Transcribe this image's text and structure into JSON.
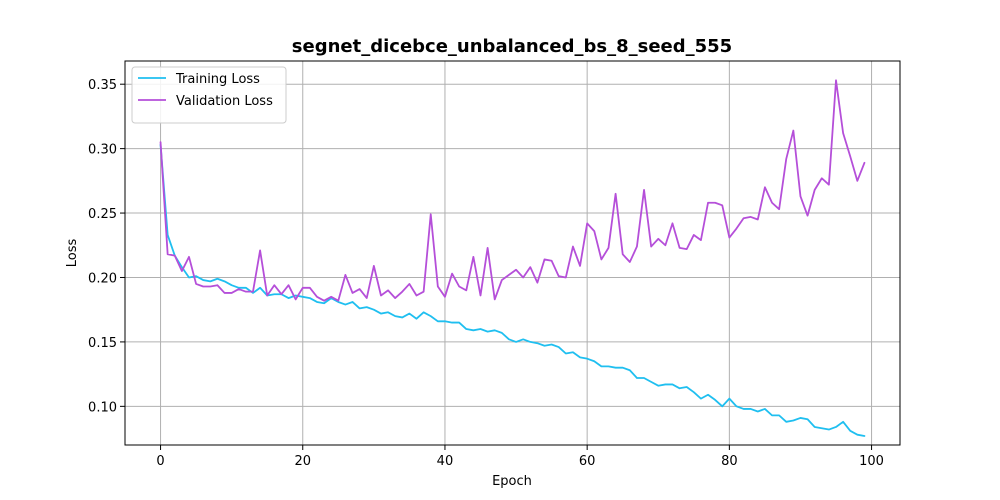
{
  "chart_data": {
    "type": "line",
    "title": "segnet_dicebce_unbalanced_bs_8_seed_555",
    "xlabel": "Epoch",
    "ylabel": "Loss",
    "xlim": [
      -5,
      104
    ],
    "ylim": [
      0.07,
      0.368
    ],
    "xticks": [
      0,
      20,
      40,
      60,
      80,
      100
    ],
    "yticks": [
      0.1,
      0.15,
      0.2,
      0.25,
      0.3,
      0.35
    ],
    "grid": true,
    "legend_position": "upper-left",
    "series": [
      {
        "name": "Training Loss",
        "color": "#1fbff0",
        "values": [
          0.303,
          0.233,
          0.217,
          0.208,
          0.2,
          0.201,
          0.198,
          0.197,
          0.199,
          0.197,
          0.194,
          0.192,
          0.192,
          0.188,
          0.192,
          0.186,
          0.187,
          0.187,
          0.184,
          0.186,
          0.185,
          0.184,
          0.181,
          0.18,
          0.184,
          0.181,
          0.179,
          0.181,
          0.176,
          0.177,
          0.175,
          0.172,
          0.173,
          0.17,
          0.169,
          0.172,
          0.168,
          0.173,
          0.17,
          0.166,
          0.166,
          0.165,
          0.165,
          0.16,
          0.159,
          0.16,
          0.158,
          0.159,
          0.157,
          0.152,
          0.15,
          0.152,
          0.15,
          0.149,
          0.147,
          0.148,
          0.146,
          0.141,
          0.142,
          0.138,
          0.137,
          0.135,
          0.131,
          0.131,
          0.13,
          0.13,
          0.128,
          0.122,
          0.122,
          0.119,
          0.116,
          0.117,
          0.117,
          0.114,
          0.115,
          0.111,
          0.106,
          0.109,
          0.105,
          0.1,
          0.106,
          0.1,
          0.098,
          0.098,
          0.096,
          0.098,
          0.093,
          0.093,
          0.088,
          0.089,
          0.091,
          0.09,
          0.084,
          0.083,
          0.082,
          0.084,
          0.088,
          0.081,
          0.078,
          0.077
        ]
      },
      {
        "name": "Validation Loss",
        "color": "#b54fd9",
        "values": [
          0.305,
          0.218,
          0.217,
          0.205,
          0.216,
          0.195,
          0.193,
          0.193,
          0.194,
          0.188,
          0.188,
          0.191,
          0.189,
          0.189,
          0.221,
          0.186,
          0.194,
          0.187,
          0.194,
          0.183,
          0.192,
          0.192,
          0.185,
          0.182,
          0.185,
          0.182,
          0.202,
          0.188,
          0.191,
          0.184,
          0.209,
          0.186,
          0.19,
          0.184,
          0.189,
          0.195,
          0.186,
          0.189,
          0.249,
          0.193,
          0.185,
          0.203,
          0.193,
          0.19,
          0.216,
          0.186,
          0.223,
          0.183,
          0.198,
          0.202,
          0.206,
          0.2,
          0.208,
          0.196,
          0.214,
          0.213,
          0.201,
          0.2,
          0.224,
          0.209,
          0.242,
          0.236,
          0.214,
          0.223,
          0.265,
          0.218,
          0.212,
          0.224,
          0.268,
          0.224,
          0.23,
          0.225,
          0.242,
          0.223,
          0.222,
          0.233,
          0.229,
          0.258,
          0.258,
          0.256,
          0.231,
          0.238,
          0.246,
          0.247,
          0.245,
          0.27,
          0.258,
          0.253,
          0.292,
          0.314,
          0.263,
          0.248,
          0.268,
          0.277,
          0.272,
          0.353,
          0.312,
          0.294,
          0.275,
          0.289
        ]
      }
    ]
  }
}
